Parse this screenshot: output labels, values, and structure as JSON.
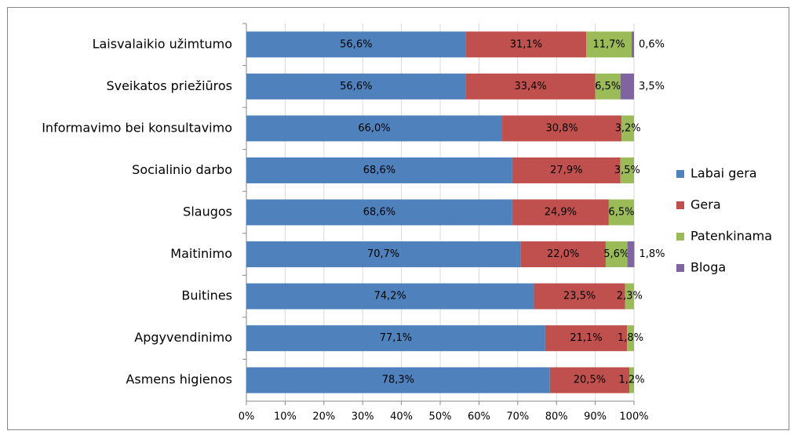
{
  "chart_data": {
    "type": "stacked-bar-horizontal",
    "categories": [
      "Laisvalaikio užimtumo",
      "Sveikatos priežiūros",
      "Informavimo bei konsultavimo",
      "Socialinio darbo",
      "Slaugos",
      "Maitinimo",
      "Buitines",
      "Apgyvendinimo",
      "Asmens higienos"
    ],
    "series": [
      {
        "name": "Labai gera",
        "color": "#4f81bd",
        "values": [
          56.6,
          56.6,
          66.0,
          68.6,
          68.6,
          70.7,
          74.2,
          77.1,
          78.3
        ],
        "value_labels": [
          "56,6%",
          "56,6%",
          "66,0%",
          "68,6%",
          "68,6%",
          "70,7%",
          "74,2%",
          "77,1%",
          "78,3%"
        ]
      },
      {
        "name": "Gera",
        "color": "#c0504d",
        "values": [
          31.1,
          33.4,
          30.8,
          27.9,
          24.9,
          22.0,
          23.5,
          21.1,
          20.5
        ],
        "value_labels": [
          "31,1%",
          "33,4%",
          "30,8%",
          "27,9%",
          "24,9%",
          "22,0%",
          "23,5%",
          "21,1%",
          "20,5%"
        ]
      },
      {
        "name": "Patenkinama",
        "color": "#9bbb59",
        "values": [
          11.7,
          6.5,
          3.2,
          3.5,
          6.5,
          5.6,
          2.3,
          1.8,
          1.2
        ],
        "value_labels": [
          "11,7%",
          "6,5%",
          "3,2%",
          "3,5%",
          "6,5%",
          "5,6%",
          "2,3%",
          "1,8%",
          "1,2%"
        ]
      },
      {
        "name": "Bloga",
        "color": "#8064a2",
        "values": [
          0.6,
          3.5,
          null,
          null,
          null,
          1.8,
          null,
          null,
          null
        ],
        "value_labels": [
          "0,6%",
          "3,5%",
          null,
          null,
          null,
          "1,8%",
          null,
          null,
          null
        ]
      }
    ],
    "xlim": [
      0,
      100
    ],
    "xticks": [
      {
        "value": 0,
        "label": "0%"
      },
      {
        "value": 10,
        "label": "10%"
      },
      {
        "value": 20,
        "label": "20%"
      },
      {
        "value": 30,
        "label": "30%"
      },
      {
        "value": 40,
        "label": "40%"
      },
      {
        "value": 50,
        "label": "50%"
      },
      {
        "value": 60,
        "label": "60%"
      },
      {
        "value": 70,
        "label": "70%"
      },
      {
        "value": 80,
        "label": "80%"
      },
      {
        "value": 90,
        "label": "90%"
      },
      {
        "value": 100,
        "label": "100%"
      }
    ],
    "grid": true,
    "legend": "right"
  }
}
